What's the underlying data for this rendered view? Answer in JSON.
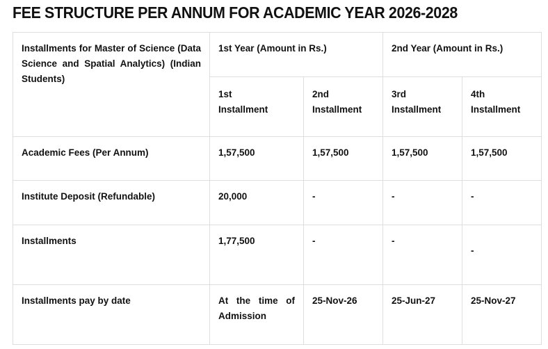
{
  "title": "FEE STRUCTURE PER ANNUM FOR ACADEMIC YEAR 2026-2028",
  "table": {
    "corner_label": "Installments for Master of Science (Data Science and Spatial Analytics) (Indian Students)",
    "year_headers": [
      "1st Year (Amount in Rs.)",
      "2nd Year (Amount in Rs.)"
    ],
    "installment_headers": [
      {
        "line1": "1st",
        "line2": "Installment"
      },
      {
        "line1": "2nd",
        "line2": "Installment"
      },
      {
        "line1": "3rd",
        "line2": "Installment"
      },
      {
        "line1": "4th",
        "line2": "Installment"
      }
    ],
    "rows": [
      {
        "label": "Academic Fees (Per Annum)",
        "values": [
          "1,57,500",
          "1,57,500",
          "1,57,500",
          "1,57,500"
        ]
      },
      {
        "label": "Institute Deposit (Refundable)",
        "values": [
          "20,000",
          "-",
          "-",
          "-"
        ]
      },
      {
        "label": "Installments",
        "values": [
          "1,77,500",
          "-",
          "-",
          "-"
        ]
      },
      {
        "label": "Installments pay by date",
        "values": [
          "At the time of Admission",
          "25-Nov-26",
          "25-Jun-27",
          "25-Nov-27"
        ]
      }
    ]
  },
  "colors": {
    "text": "#111111",
    "border": "#dedede",
    "background": "#ffffff"
  }
}
